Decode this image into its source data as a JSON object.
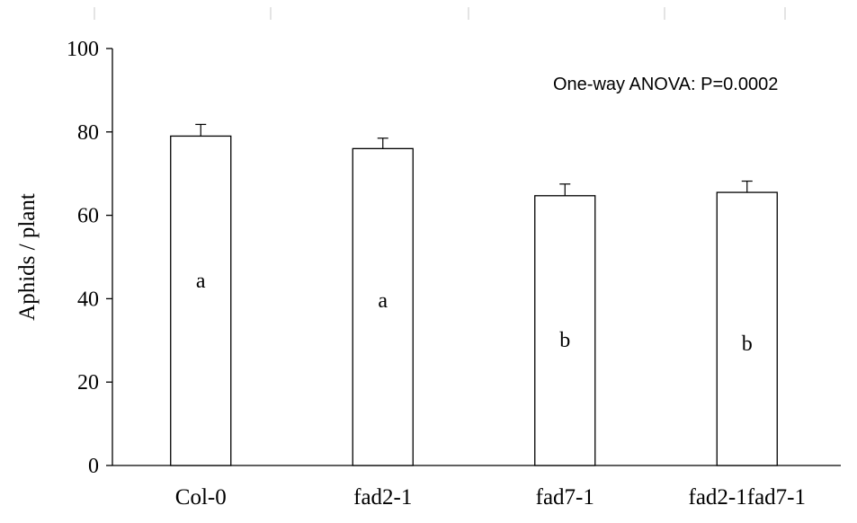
{
  "chart_data": {
    "type": "bar",
    "categories": [
      "Col-0",
      "fad2-1",
      "fad7-1",
      "fad2-1fad7-1"
    ],
    "values": [
      79,
      76,
      64.7,
      65.5
    ],
    "errors": [
      2.8,
      2.5,
      2.8,
      2.7
    ],
    "letters": [
      "a",
      "a",
      "b",
      "b"
    ],
    "ylabel": "Aphids / plant",
    "xlabel": "",
    "ylim": [
      0,
      100
    ],
    "yticks": [
      0,
      20,
      40,
      60,
      80,
      100
    ],
    "annotation": "One-way ANOVA: P=0.0002",
    "grid": false,
    "bar_color": "#ffffff",
    "edge_color": "#000000"
  }
}
